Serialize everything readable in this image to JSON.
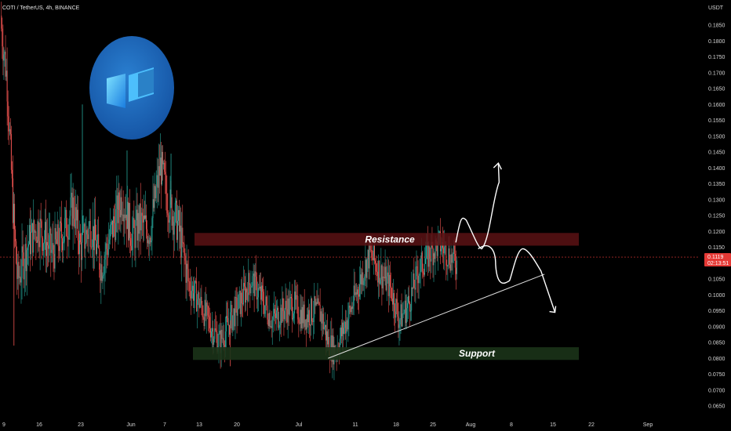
{
  "header": {
    "symbol": "COTI / TetherUS, 4h, BINANCE",
    "currency": "USDT"
  },
  "colors": {
    "background": "#000000",
    "up": "#26a69a",
    "down": "#ef5350",
    "resistance_zone": "#5a1214",
    "support_zone": "#1b3318",
    "price_tag": "#e53935"
  },
  "chart_data": {
    "type": "candlestick",
    "y_scale": {
      "min": 0.06,
      "max": 0.19,
      "grid": false
    },
    "y_ticks": [
      "0.1850",
      "0.1800",
      "0.1750",
      "0.1700",
      "0.1650",
      "0.1600",
      "0.1550",
      "0.1500",
      "0.1450",
      "0.1400",
      "0.1350",
      "0.1300",
      "0.1250",
      "0.1200",
      "0.1150",
      "0.1100",
      "0.1050",
      "0.1000",
      "0.0950",
      "0.0900",
      "0.0850",
      "0.0800",
      "0.0750",
      "0.0700",
      "0.0650"
    ],
    "x_ticks": [
      "9",
      "16",
      "23",
      "Jun",
      "7",
      "13",
      "20",
      "Jul",
      "11",
      "18",
      "25",
      "Aug",
      "8",
      "15",
      "22",
      "Sep"
    ],
    "price_path": [
      [
        0,
        0.188
      ],
      [
        0.01,
        0.168
      ],
      [
        0.018,
        0.13
      ],
      [
        0.025,
        0.104
      ],
      [
        0.04,
        0.116
      ],
      [
        0.055,
        0.122
      ],
      [
        0.075,
        0.113
      ],
      [
        0.095,
        0.122
      ],
      [
        0.105,
        0.128
      ],
      [
        0.115,
        0.115
      ],
      [
        0.13,
        0.122
      ],
      [
        0.145,
        0.109
      ],
      [
        0.16,
        0.12
      ],
      [
        0.175,
        0.131
      ],
      [
        0.19,
        0.118
      ],
      [
        0.2,
        0.123
      ],
      [
        0.215,
        0.12
      ],
      [
        0.23,
        0.141
      ],
      [
        0.24,
        0.13
      ],
      [
        0.255,
        0.122
      ],
      [
        0.27,
        0.104
      ],
      [
        0.285,
        0.098
      ],
      [
        0.3,
        0.091
      ],
      [
        0.315,
        0.085
      ],
      [
        0.33,
        0.092
      ],
      [
        0.345,
        0.098
      ],
      [
        0.36,
        0.105
      ],
      [
        0.375,
        0.099
      ],
      [
        0.39,
        0.092
      ],
      [
        0.405,
        0.095
      ],
      [
        0.42,
        0.097
      ],
      [
        0.435,
        0.093
      ],
      [
        0.45,
        0.095
      ],
      [
        0.46,
        0.094
      ],
      [
        0.47,
        0.085
      ],
      [
        0.48,
        0.082
      ],
      [
        0.49,
        0.088
      ],
      [
        0.505,
        0.097
      ],
      [
        0.52,
        0.107
      ],
      [
        0.53,
        0.113
      ],
      [
        0.545,
        0.107
      ],
      [
        0.56,
        0.102
      ],
      [
        0.572,
        0.092
      ],
      [
        0.585,
        0.097
      ],
      [
        0.6,
        0.108
      ],
      [
        0.615,
        0.113
      ],
      [
        0.63,
        0.116
      ],
      [
        0.645,
        0.112
      ],
      [
        0.655,
        0.11
      ]
    ],
    "last_price": "0.1119",
    "countdown": "02:13:51",
    "zones": [
      {
        "label": "Resistance",
        "from": 0.1155,
        "to": 0.1195
      },
      {
        "label": "Support",
        "from": 0.0795,
        "to": 0.0835
      }
    ],
    "trendline": {
      "from": [
        0.47,
        0.08
      ],
      "to": [
        0.78,
        0.1065
      ]
    },
    "projection_up": [
      [
        0.653,
        0.1165
      ],
      [
        0.668,
        0.1235
      ],
      [
        0.69,
        0.1145
      ],
      [
        0.715,
        0.1355
      ],
      [
        0.702,
        0.1415
      ]
    ],
    "projection_down": [
      [
        0.685,
        0.1145
      ],
      [
        0.71,
        0.1095
      ],
      [
        0.73,
        0.1045
      ],
      [
        0.75,
        0.1145
      ],
      [
        0.775,
        0.1075
      ],
      [
        0.795,
        0.0945
      ]
    ],
    "logo": "coti-logo"
  }
}
